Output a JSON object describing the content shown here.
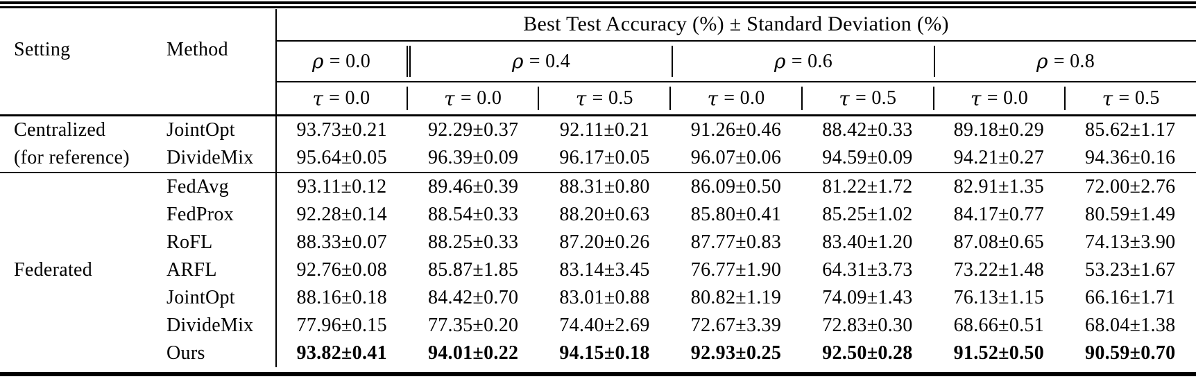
{
  "page": {
    "background": "#ffffff",
    "text_color": "#000000",
    "rule_color": "#000000"
  },
  "table": {
    "header": {
      "setting": "Setting",
      "method": "Method",
      "accuracy_title": "Best Test Accuracy (%) ± Standard Deviation (%)",
      "rho_groups": [
        {
          "symbol": "ρ",
          "eq": "= 0.0"
        },
        {
          "symbol": "ρ",
          "eq": "= 0.4"
        },
        {
          "symbol": "ρ",
          "eq": "= 0.6"
        },
        {
          "symbol": "ρ",
          "eq": "= 0.8"
        }
      ],
      "tau_cols": [
        {
          "symbol": "τ",
          "eq": "= 0.0"
        },
        {
          "symbol": "τ",
          "eq": "= 0.0"
        },
        {
          "symbol": "τ",
          "eq": "= 0.5"
        },
        {
          "symbol": "τ",
          "eq": "= 0.0"
        },
        {
          "symbol": "τ",
          "eq": "= 0.5"
        },
        {
          "symbol": "τ",
          "eq": "= 0.0"
        },
        {
          "symbol": "τ",
          "eq": "= 0.5"
        }
      ]
    },
    "groups": [
      {
        "setting_lines": [
          "Centralized",
          "(for reference)"
        ],
        "rows": [
          {
            "method": "JointOpt",
            "bold": false,
            "values": [
              "93.73±0.21",
              "92.29±0.37",
              "92.11±0.21",
              "91.26±0.46",
              "88.42±0.33",
              "89.18±0.29",
              "85.62±1.17"
            ]
          },
          {
            "method": "DivideMix",
            "bold": false,
            "values": [
              "95.64±0.05",
              "96.39±0.09",
              "96.17±0.05",
              "96.07±0.06",
              "94.59±0.09",
              "94.21±0.27",
              "94.36±0.16"
            ]
          }
        ]
      },
      {
        "setting_lines": [
          "Federated"
        ],
        "rows": [
          {
            "method": "FedAvg",
            "bold": false,
            "values": [
              "93.11±0.12",
              "89.46±0.39",
              "88.31±0.80",
              "86.09±0.50",
              "81.22±1.72",
              "82.91±1.35",
              "72.00±2.76"
            ]
          },
          {
            "method": "FedProx",
            "bold": false,
            "values": [
              "92.28±0.14",
              "88.54±0.33",
              "88.20±0.63",
              "85.80±0.41",
              "85.25±1.02",
              "84.17±0.77",
              "80.59±1.49"
            ]
          },
          {
            "method": "RoFL",
            "bold": false,
            "values": [
              "88.33±0.07",
              "88.25±0.33",
              "87.20±0.26",
              "87.77±0.83",
              "83.40±1.20",
              "87.08±0.65",
              "74.13±3.90"
            ]
          },
          {
            "method": "ARFL",
            "bold": false,
            "values": [
              "92.76±0.08",
              "85.87±1.85",
              "83.14±3.45",
              "76.77±1.90",
              "64.31±3.73",
              "73.22±1.48",
              "53.23±1.67"
            ]
          },
          {
            "method": "JointOpt",
            "bold": false,
            "values": [
              "88.16±0.18",
              "84.42±0.70",
              "83.01±0.88",
              "80.82±1.19",
              "74.09±1.43",
              "76.13±1.15",
              "66.16±1.71"
            ]
          },
          {
            "method": "DivideMix",
            "bold": false,
            "values": [
              "77.96±0.15",
              "77.35±0.20",
              "74.40±2.69",
              "72.67±3.39",
              "72.83±0.30",
              "68.66±0.51",
              "68.04±1.38"
            ]
          },
          {
            "method": "Ours",
            "bold": true,
            "values": [
              "93.82±0.41",
              "94.01±0.22",
              "94.15±0.18",
              "92.93±0.25",
              "92.50±0.28",
              "91.52±0.50",
              "90.59±0.70"
            ]
          }
        ]
      }
    ]
  }
}
